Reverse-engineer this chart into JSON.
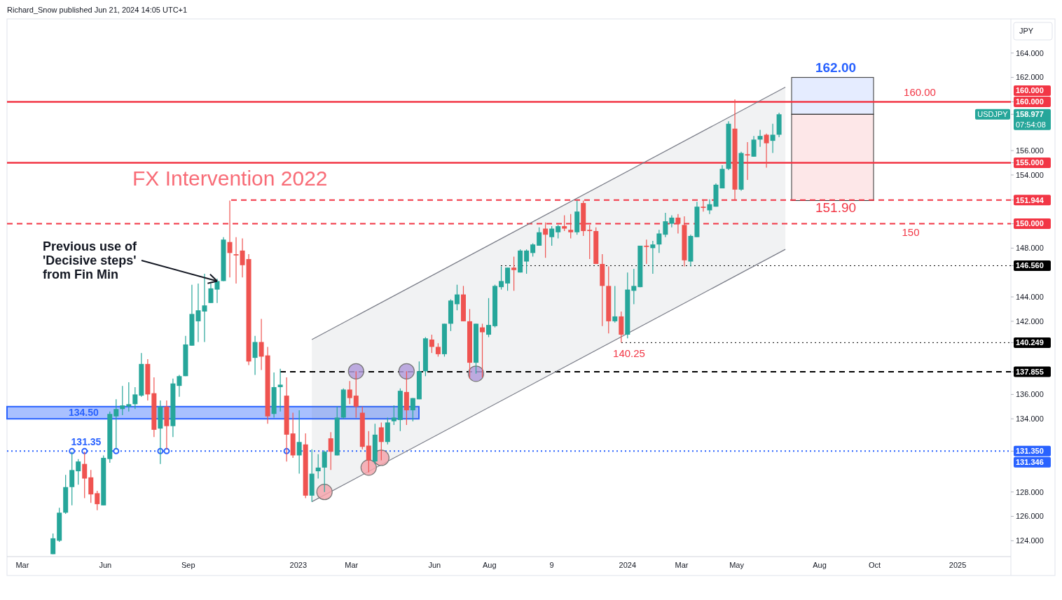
{
  "chart_data": {
    "type": "candlestick",
    "ylabel": "JPY",
    "annotations": [
      "Richard_Snow published Jun 21, 2024 14:05 UTC+1",
      "FX Intervention 2022",
      {
        "text": "Previous use of\n'Decisive steps'\nfrom Fin Min",
        "x": "2022-10-03",
        "y": 145.3
      },
      "USDJPY",
      "07:54:08",
      "160.000",
      "131.346"
    ],
    "x": [
      "2022-04-04",
      "2022-04-11",
      "2022-04-18",
      "2022-04-25",
      "2022-05-02",
      "2022-05-09",
      "2022-05-16",
      "2022-05-23",
      "2022-05-30",
      "2022-06-06",
      "2022-06-13",
      "2022-06-20",
      "2022-06-27",
      "2022-07-04",
      "2022-07-11",
      "2022-07-18",
      "2022-07-25",
      "2022-08-01",
      "2022-08-08",
      "2022-08-15",
      "2022-08-22",
      "2022-08-29",
      "2022-09-05",
      "2022-09-12",
      "2022-09-19",
      "2022-09-26",
      "2022-10-03",
      "2022-10-10",
      "2022-10-17",
      "2022-10-24",
      "2022-10-31",
      "2022-11-07",
      "2022-11-14",
      "2022-11-21",
      "2022-11-28",
      "2022-12-05",
      "2022-12-12",
      "2022-12-19",
      "2022-12-26",
      "2023-01-02",
      "2023-01-09",
      "2023-01-16",
      "2023-01-23",
      "2023-01-30",
      "2023-02-06",
      "2023-02-13",
      "2023-02-20",
      "2023-02-27",
      "2023-03-06",
      "2023-03-13",
      "2023-03-20",
      "2023-03-27",
      "2023-04-03",
      "2023-04-10",
      "2023-04-17",
      "2023-04-24",
      "2023-05-01",
      "2023-05-08",
      "2023-05-15",
      "2023-05-22",
      "2023-05-29",
      "2023-06-05",
      "2023-06-12",
      "2023-06-19",
      "2023-06-26",
      "2023-07-03",
      "2023-07-10",
      "2023-07-17",
      "2023-07-24",
      "2023-07-31",
      "2023-08-07",
      "2023-08-14",
      "2023-08-21",
      "2023-08-28",
      "2023-09-04",
      "2023-09-11",
      "2023-09-18",
      "2023-09-25",
      "2023-10-02",
      "2023-10-09",
      "2023-10-16",
      "2023-10-23",
      "2023-10-30",
      "2023-11-06",
      "2023-11-13",
      "2023-11-20",
      "2023-11-27",
      "2023-12-04",
      "2023-12-11",
      "2023-12-18",
      "2023-12-25",
      "2024-01-01",
      "2024-01-08",
      "2024-01-15",
      "2024-01-22",
      "2024-01-29",
      "2024-02-05",
      "2024-02-12",
      "2024-02-19",
      "2024-02-26",
      "2024-03-04",
      "2024-03-11",
      "2024-03-18",
      "2024-03-25",
      "2024-04-01",
      "2024-04-08",
      "2024-04-15",
      "2024-04-22",
      "2024-04-29",
      "2024-05-06",
      "2024-05-13",
      "2024-05-20",
      "2024-05-27",
      "2024-06-03",
      "2024-06-10",
      "2024-06-17"
    ],
    "ohlc": [
      [
        122.9,
        124.6,
        122.9,
        124.2
      ],
      [
        124.0,
        126.7,
        123.9,
        126.3
      ],
      [
        126.3,
        129.4,
        126.2,
        128.4
      ],
      [
        128.4,
        131.3,
        126.9,
        129.8
      ],
      [
        129.7,
        130.7,
        128.6,
        130.5
      ],
      [
        130.3,
        131.3,
        127.5,
        129.1
      ],
      [
        129.2,
        129.8,
        127.1,
        127.8
      ],
      [
        127.9,
        128.1,
        126.5,
        127.0
      ],
      [
        126.9,
        131.0,
        126.9,
        130.8
      ],
      [
        130.7,
        134.6,
        130.4,
        134.4
      ],
      [
        134.2,
        135.6,
        131.5,
        134.8
      ],
      [
        134.8,
        136.7,
        134.3,
        135.1
      ],
      [
        135.0,
        137.0,
        134.6,
        135.2
      ],
      [
        135.2,
        136.6,
        134.8,
        136.0
      ],
      [
        135.9,
        139.4,
        135.8,
        138.5
      ],
      [
        138.5,
        138.9,
        135.5,
        136.0
      ],
      [
        136.1,
        137.4,
        132.5,
        133.1
      ],
      [
        133.2,
        135.5,
        130.3,
        135.0
      ],
      [
        135.0,
        135.5,
        131.5,
        133.4
      ],
      [
        133.4,
        137.3,
        132.5,
        136.9
      ],
      [
        136.7,
        137.6,
        135.8,
        137.5
      ],
      [
        137.5,
        140.8,
        137.5,
        140.1
      ],
      [
        140.0,
        145.0,
        140.0,
        142.6
      ],
      [
        142.0,
        145.1,
        140.3,
        142.9
      ],
      [
        142.8,
        145.9,
        140.3,
        143.3
      ],
      [
        143.5,
        145.1,
        143.5,
        144.7
      ],
      [
        144.6,
        145.5,
        143.5,
        145.3
      ],
      [
        145.3,
        148.9,
        145.3,
        148.7
      ],
      [
        148.5,
        151.9,
        145.6,
        147.6
      ],
      [
        147.5,
        148.9,
        145.1,
        147.4
      ],
      [
        147.8,
        148.8,
        145.6,
        146.6
      ],
      [
        147.1,
        147.5,
        138.4,
        138.7
      ],
      [
        139.0,
        140.8,
        137.6,
        140.3
      ],
      [
        140.3,
        142.2,
        138.0,
        139.1
      ],
      [
        139.2,
        139.9,
        133.6,
        134.2
      ],
      [
        134.4,
        137.8,
        134.1,
        136.6
      ],
      [
        136.6,
        138.1,
        134.6,
        136.8
      ],
      [
        135.9,
        137.4,
        130.5,
        132.7
      ],
      [
        132.8,
        134.5,
        130.8,
        131.0
      ],
      [
        131.0,
        134.7,
        129.5,
        132.1
      ],
      [
        131.9,
        132.8,
        127.5,
        127.7
      ],
      [
        127.7,
        131.5,
        127.2,
        129.5
      ],
      [
        129.7,
        131.1,
        129.1,
        130.0
      ],
      [
        130.0,
        131.4,
        128.0,
        131.3
      ],
      [
        132.4,
        132.9,
        129.8,
        131.3
      ],
      [
        131.0,
        135.0,
        131.0,
        134.1
      ],
      [
        134.1,
        136.5,
        134.0,
        136.4
      ],
      [
        136.4,
        137.1,
        135.2,
        135.7
      ],
      [
        135.9,
        137.9,
        134.1,
        135.0
      ],
      [
        134.5,
        135.0,
        131.5,
        131.7
      ],
      [
        131.8,
        133.0,
        129.6,
        130.6
      ],
      [
        130.5,
        133.6,
        130.3,
        132.7
      ],
      [
        133.3,
        133.7,
        130.6,
        132.1
      ],
      [
        132.1,
        134.1,
        131.9,
        133.7
      ],
      [
        133.8,
        135.1,
        133.5,
        134.1
      ],
      [
        133.9,
        136.5,
        133.0,
        136.3
      ],
      [
        136.2,
        137.9,
        133.5,
        134.7
      ],
      [
        134.7,
        135.7,
        133.8,
        135.7
      ],
      [
        135.6,
        138.7,
        135.6,
        137.9
      ],
      [
        137.9,
        140.7,
        137.5,
        140.6
      ],
      [
        140.5,
        140.9,
        139.4,
        139.9
      ],
      [
        139.9,
        140.2,
        139.1,
        139.3
      ],
      [
        139.3,
        141.8,
        139.1,
        141.8
      ],
      [
        141.8,
        143.8,
        141.2,
        143.7
      ],
      [
        143.4,
        145.0,
        142.9,
        144.2
      ],
      [
        144.2,
        144.9,
        142.0,
        142.0
      ],
      [
        142.0,
        143.0,
        137.3,
        138.6
      ],
      [
        138.6,
        141.8,
        137.7,
        141.8
      ],
      [
        141.5,
        141.8,
        137.4,
        141.1
      ],
      [
        140.9,
        143.9,
        140.7,
        141.7
      ],
      [
        141.6,
        145.0,
        141.5,
        144.9
      ],
      [
        144.8,
        146.5,
        144.6,
        145.3
      ],
      [
        145.1,
        146.4,
        144.5,
        146.4
      ],
      [
        146.4,
        147.3,
        144.5,
        146.2
      ],
      [
        146.0,
        147.9,
        146.0,
        147.8
      ],
      [
        146.9,
        147.9,
        145.9,
        147.8
      ],
      [
        147.6,
        148.4,
        147.3,
        148.3
      ],
      [
        148.2,
        149.7,
        148.2,
        149.3
      ],
      [
        149.6,
        150.1,
        147.2,
        149.1
      ],
      [
        148.9,
        149.8,
        148.2,
        149.6
      ],
      [
        149.3,
        149.9,
        148.8,
        149.8
      ],
      [
        149.8,
        150.7,
        149.4,
        149.6
      ],
      [
        149.5,
        150.8,
        148.8,
        149.3
      ],
      [
        149.3,
        151.9,
        149.1,
        151.0
      ],
      [
        151.7,
        151.9,
        149.0,
        149.4
      ],
      [
        149.5,
        149.9,
        147.1,
        149.4
      ],
      [
        149.4,
        149.7,
        146.7,
        146.7
      ],
      [
        146.7,
        147.5,
        141.6,
        144.9
      ],
      [
        144.9,
        146.5,
        141.0,
        142.0
      ],
      [
        142.0,
        144.9,
        141.9,
        142.4
      ],
      [
        142.4,
        142.8,
        140.25,
        140.9
      ],
      [
        140.9,
        146.0,
        140.6,
        144.6
      ],
      [
        144.5,
        146.3,
        143.4,
        144.9
      ],
      [
        144.8,
        148.2,
        144.8,
        148.2
      ],
      [
        148.2,
        148.7,
        146.7,
        148.1
      ],
      [
        148.0,
        148.6,
        145.9,
        148.3
      ],
      [
        148.3,
        149.5,
        147.6,
        149.2
      ],
      [
        149.1,
        150.9,
        148.9,
        150.2
      ],
      [
        150.0,
        150.7,
        149.7,
        150.5
      ],
      [
        150.5,
        150.8,
        149.2,
        150.0
      ],
      [
        149.9,
        150.6,
        146.5,
        147.0
      ],
      [
        146.9,
        149.1,
        146.5,
        149.0
      ],
      [
        148.9,
        151.8,
        148.9,
        151.4
      ],
      [
        151.4,
        152.0,
        151.0,
        151.3
      ],
      [
        151.1,
        152.0,
        150.8,
        151.6
      ],
      [
        151.4,
        153.3,
        151.4,
        153.2
      ],
      [
        152.9,
        154.8,
        152.9,
        154.5
      ],
      [
        154.5,
        158.4,
        154.4,
        158.2
      ],
      [
        157.8,
        160.2,
        151.9,
        152.8
      ],
      [
        152.8,
        155.9,
        152.7,
        155.8
      ],
      [
        155.7,
        156.7,
        153.6,
        155.6
      ],
      [
        155.5,
        157.2,
        155.5,
        156.9
      ],
      [
        156.9,
        157.7,
        156.3,
        157.2
      ],
      [
        157.3,
        157.4,
        154.6,
        156.6
      ],
      [
        156.8,
        158.2,
        155.8,
        157.3
      ],
      [
        157.3,
        159.1,
        157.1,
        158.977
      ]
    ],
    "series": [
      {
        "type": "line",
        "color": "#787b86",
        "x": [
          "2023-01-16",
          "2024-06-24"
        ],
        "values": [
          140.5,
          161.2
        ]
      },
      {
        "type": "line",
        "color": "#787b86",
        "x": [
          "2023-01-16",
          "2024-06-24"
        ],
        "values": [
          127.2,
          147.9
        ]
      },
      {
        "type": "bubble",
        "color": "#f4a6ad",
        "x": [
          "2023-01-30",
          "2023-03-20",
          "2023-04-03"
        ],
        "values": [
          128.0,
          130.0,
          130.8
        ],
        "sizes": [
          1,
          1,
          1
        ]
      },
      {
        "type": "bubble",
        "color": "#b39ddb",
        "x": [
          "2023-03-06",
          "2023-05-01",
          "2023-07-17"
        ],
        "values": [
          137.9,
          137.9,
          137.7
        ],
        "sizes": [
          1,
          1,
          1
        ]
      },
      {
        "type": "scatter",
        "color": "#2962ff",
        "marker": "circle",
        "x": [
          "2022-04-25",
          "2022-05-09",
          "2022-06-13",
          "2022-08-01",
          "2022-08-08",
          "2022-12-19"
        ],
        "values": [
          131.35,
          131.35,
          131.35,
          131.35,
          131.35,
          131.35
        ]
      }
    ],
    "ref_lines": [
      {
        "axis": "y",
        "value": 160,
        "label": "160.00",
        "color": "#f23645",
        "line_style": "solid"
      },
      {
        "axis": "y",
        "value": 155,
        "color": "#f23645",
        "line_style": "solid"
      },
      {
        "axis": "y",
        "value": 151.944,
        "color": "#f23645",
        "line_style": "dashed"
      },
      {
        "axis": "y",
        "value": 150,
        "label": "150",
        "color": "#f23645",
        "line_style": "dashed"
      },
      {
        "axis": "y",
        "value": 146.56,
        "color": "#000000",
        "line_style": "dotted"
      },
      {
        "axis": "y",
        "value": 140.249,
        "label": "140.25",
        "color": "#000000",
        "line_style": "dotted"
      },
      {
        "axis": "y",
        "value": 137.855,
        "color": "#000000",
        "line_style": "dashed"
      },
      {
        "axis": "y",
        "value": 131.35,
        "label": "131.35",
        "color": "#2962ff",
        "line_style": "dotted"
      }
    ],
    "bands": [
      {
        "axis": "y",
        "from": 134.0,
        "to": 135.0,
        "label": "134.50",
        "color": "#2962ff"
      },
      {
        "axis": "y",
        "from": 158.977,
        "to": 162,
        "label": "162.00",
        "color": "#2962ff"
      },
      {
        "axis": "y",
        "from": 151.9,
        "to": 158.977,
        "label": "151.90",
        "color": "#f23645"
      }
    ],
    "xlim": [
      "2022-02-12",
      "2025-03-01"
    ],
    "xticks": [
      {
        "value": "2022-03-01",
        "label": "Mar"
      },
      {
        "value": "2022-06-01",
        "label": "Jun"
      },
      {
        "value": "2022-09-01",
        "label": "Sep"
      },
      {
        "value": "2023-01-01",
        "label": "2023"
      },
      {
        "value": "2023-03-01",
        "label": "Mar"
      },
      {
        "value": "2023-06-01",
        "label": "Jun"
      },
      {
        "value": "2023-08-01",
        "label": "Aug"
      },
      {
        "value": "2023-10-09",
        "label": "9"
      },
      {
        "value": "2024-01-01",
        "label": "2024"
      },
      {
        "value": "2024-03-01",
        "label": "Mar"
      },
      {
        "value": "2024-05-01",
        "label": "May"
      },
      {
        "value": "2024-08-01",
        "label": "Aug"
      },
      {
        "value": "2024-10-01",
        "label": "Oct"
      },
      {
        "value": "2025-01-01",
        "label": "2025"
      }
    ],
    "ylim": [
      122.7,
      166.8
    ],
    "yticks": [
      {
        "value": 124,
        "label": "124.000"
      },
      {
        "value": 126,
        "label": "126.000"
      },
      {
        "value": 128,
        "label": "128.000"
      },
      {
        "value": 134,
        "label": "134.000"
      },
      {
        "value": 136,
        "label": "136.000"
      },
      {
        "value": 142,
        "label": "142.000"
      },
      {
        "value": 144,
        "label": "144.000"
      },
      {
        "value": 148,
        "label": "148.000"
      },
      {
        "value": 154,
        "label": "154.000"
      },
      {
        "value": 156,
        "label": "156.000"
      },
      {
        "value": 162,
        "label": "162.000"
      },
      {
        "value": 164,
        "label": "164.000"
      },
      {
        "value": 160,
        "label": "160.000"
      },
      {
        "value": 158.977,
        "label": "158.977"
      },
      {
        "value": 155,
        "label": "155.000"
      },
      {
        "value": 151.944,
        "label": "151.944"
      },
      {
        "value": 150,
        "label": "150.000"
      },
      {
        "value": 146.56,
        "label": "146.560"
      },
      {
        "value": 140.249,
        "label": "140.249"
      },
      {
        "value": 137.855,
        "label": "137.855"
      },
      {
        "value": 131.35,
        "label": "131.350"
      }
    ]
  }
}
